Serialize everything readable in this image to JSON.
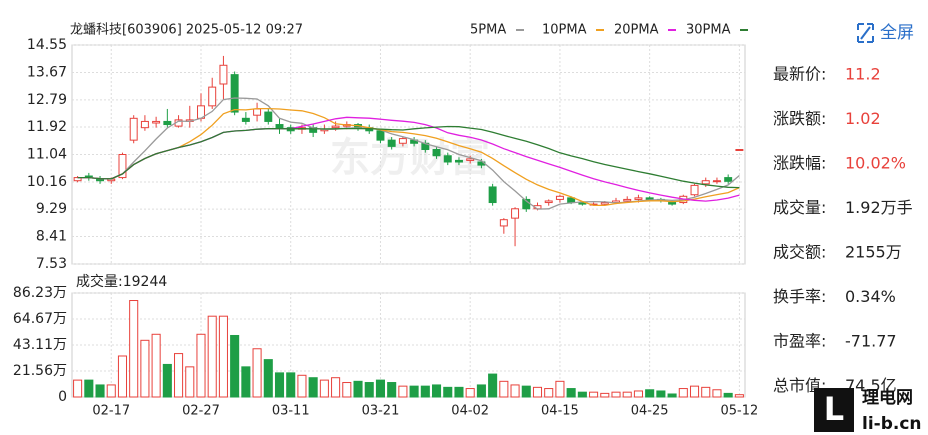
{
  "header": {
    "title": "龙蟠科技[603906] 2025-05-12 09:27",
    "fullscreen": "全屏",
    "watermark": "东方财富",
    "logo": {
      "mark": "L",
      "name": "理电网",
      "site": "li-b.cn"
    }
  },
  "stats": [
    {
      "label": "最新价:",
      "value": "11.2",
      "color": "#e8413b"
    },
    {
      "label": "涨跌额:",
      "value": "1.02",
      "color": "#e8413b"
    },
    {
      "label": "涨跌幅:",
      "value": "10.02%",
      "color": "#e8413b"
    },
    {
      "label": "成交量:",
      "value": "1.92万手",
      "color": "#222"
    },
    {
      "label": "成交额:",
      "value": "2155万",
      "color": "#222"
    },
    {
      "label": "换手率:",
      "value": "0.34%",
      "color": "#222"
    },
    {
      "label": "市盈率:",
      "value": "-71.77",
      "color": "#222"
    },
    {
      "label": "总市值:",
      "value": "74.5亿",
      "color": "#222"
    }
  ],
  "chart_data": [
    {
      "type": "candlestick",
      "up_color": "#e8413b",
      "down_color": "#1e9e46",
      "categories": [
        null,
        null,
        null,
        "02-17",
        null,
        null,
        null,
        null,
        null,
        null,
        null,
        "02-27",
        null,
        null,
        null,
        null,
        null,
        null,
        null,
        "03-11",
        null,
        null,
        null,
        null,
        null,
        null,
        null,
        "03-21",
        null,
        null,
        null,
        null,
        null,
        null,
        null,
        "04-02",
        null,
        null,
        null,
        null,
        null,
        null,
        null,
        "04-15",
        null,
        null,
        null,
        null,
        null,
        null,
        null,
        "04-25",
        null,
        null,
        null,
        null,
        null,
        null,
        null,
        "05-12"
      ],
      "open": [
        10.2,
        10.35,
        10.25,
        10.2,
        10.3,
        11.5,
        11.9,
        12.05,
        12.1,
        11.95,
        12.1,
        12.2,
        12.6,
        13.3,
        13.6,
        12.2,
        12.3,
        12.4,
        12.0,
        11.9,
        11.85,
        11.9,
        11.8,
        11.9,
        11.95,
        12.0,
        11.9,
        11.8,
        11.5,
        11.4,
        11.5,
        11.4,
        11.2,
        11.0,
        10.85,
        10.85,
        10.8,
        10.0,
        8.75,
        9.0,
        9.6,
        9.3,
        9.5,
        9.6,
        9.65,
        9.5,
        9.45,
        9.45,
        9.5,
        9.55,
        9.6,
        9.65,
        9.6,
        9.5,
        9.5,
        9.75,
        10.1,
        10.2,
        10.3,
        11.2
      ],
      "close": [
        10.3,
        10.3,
        10.2,
        10.25,
        11.04,
        12.2,
        12.1,
        12.1,
        12.0,
        12.15,
        12.15,
        12.6,
        13.2,
        13.9,
        12.4,
        12.1,
        12.5,
        12.1,
        11.9,
        11.8,
        11.9,
        11.75,
        11.85,
        11.95,
        12.0,
        11.9,
        11.8,
        11.5,
        11.3,
        11.55,
        11.4,
        11.2,
        11.0,
        10.8,
        10.8,
        10.9,
        10.7,
        9.5,
        8.95,
        9.3,
        9.3,
        9.4,
        9.55,
        9.7,
        9.5,
        9.45,
        9.45,
        9.5,
        9.55,
        9.6,
        9.65,
        9.6,
        9.55,
        9.45,
        9.7,
        10.05,
        10.2,
        10.2,
        10.18,
        11.2
      ],
      "low": [
        10.15,
        10.2,
        10.1,
        10.1,
        10.25,
        11.4,
        11.8,
        11.9,
        11.9,
        11.9,
        11.9,
        12.1,
        12.5,
        12.8,
        12.3,
        12.0,
        12.1,
        12.0,
        11.7,
        11.7,
        11.7,
        11.6,
        11.7,
        11.8,
        11.85,
        11.8,
        11.7,
        11.4,
        11.2,
        11.3,
        11.3,
        11.1,
        10.9,
        10.7,
        10.7,
        10.75,
        10.6,
        9.4,
        8.5,
        8.1,
        9.2,
        9.25,
        9.4,
        9.5,
        9.45,
        9.4,
        9.4,
        9.4,
        9.45,
        9.5,
        9.5,
        9.55,
        9.5,
        9.4,
        9.45,
        9.7,
        10.0,
        10.1,
        10.1,
        11.2
      ],
      "high": [
        10.35,
        10.45,
        10.35,
        10.3,
        11.1,
        12.3,
        12.3,
        12.25,
        12.5,
        12.3,
        12.6,
        13.0,
        13.5,
        14.2,
        13.7,
        12.4,
        12.7,
        12.5,
        12.2,
        12.0,
        12.0,
        12.0,
        12.0,
        12.1,
        12.1,
        12.05,
        12.0,
        11.85,
        11.6,
        11.6,
        11.6,
        11.5,
        11.3,
        11.1,
        10.95,
        11.0,
        10.9,
        10.1,
        9.0,
        9.35,
        9.7,
        9.5,
        9.6,
        9.75,
        9.7,
        9.55,
        9.5,
        9.55,
        9.65,
        9.7,
        9.75,
        9.7,
        9.65,
        9.55,
        9.75,
        10.1,
        10.3,
        10.3,
        10.4,
        11.2
      ],
      "ylim": [
        7.53,
        14.55
      ],
      "yticks": [
        14.55,
        13.67,
        12.79,
        11.92,
        11.04,
        10.16,
        9.29,
        8.41,
        7.53
      ],
      "grid": true,
      "series": [
        {
          "name": "5PMA",
          "color": "#9a9a9a"
        },
        {
          "name": "10PMA",
          "color": "#f0a020"
        },
        {
          "name": "20PMA",
          "color": "#e020e0"
        },
        {
          "name": "30PMA",
          "color": "#2e7d32"
        }
      ]
    },
    {
      "type": "bar",
      "title": "成交量:19244",
      "values": [
        14,
        14,
        10,
        10,
        34,
        80,
        47,
        52,
        27,
        36,
        25,
        52,
        67,
        67,
        51,
        25,
        40,
        31,
        20,
        20,
        18,
        16,
        14,
        16,
        12,
        13,
        12,
        14,
        12,
        9,
        9,
        9,
        10,
        8,
        8,
        7,
        10,
        19,
        13,
        10,
        9,
        8,
        7,
        13,
        7,
        4,
        4,
        3,
        4,
        4,
        5,
        6,
        5,
        2.5,
        7,
        9,
        8,
        6,
        3,
        1.92
      ],
      "ylim": [
        0,
        86.23
      ],
      "yticks": [
        {
          "value": 86.23,
          "label": "86.23万"
        },
        {
          "value": 64.67,
          "label": "64.67万"
        },
        {
          "value": 43.11,
          "label": "43.11万"
        },
        {
          "value": 21.56,
          "label": "21.56万"
        },
        0
      ],
      "grid": true
    }
  ]
}
